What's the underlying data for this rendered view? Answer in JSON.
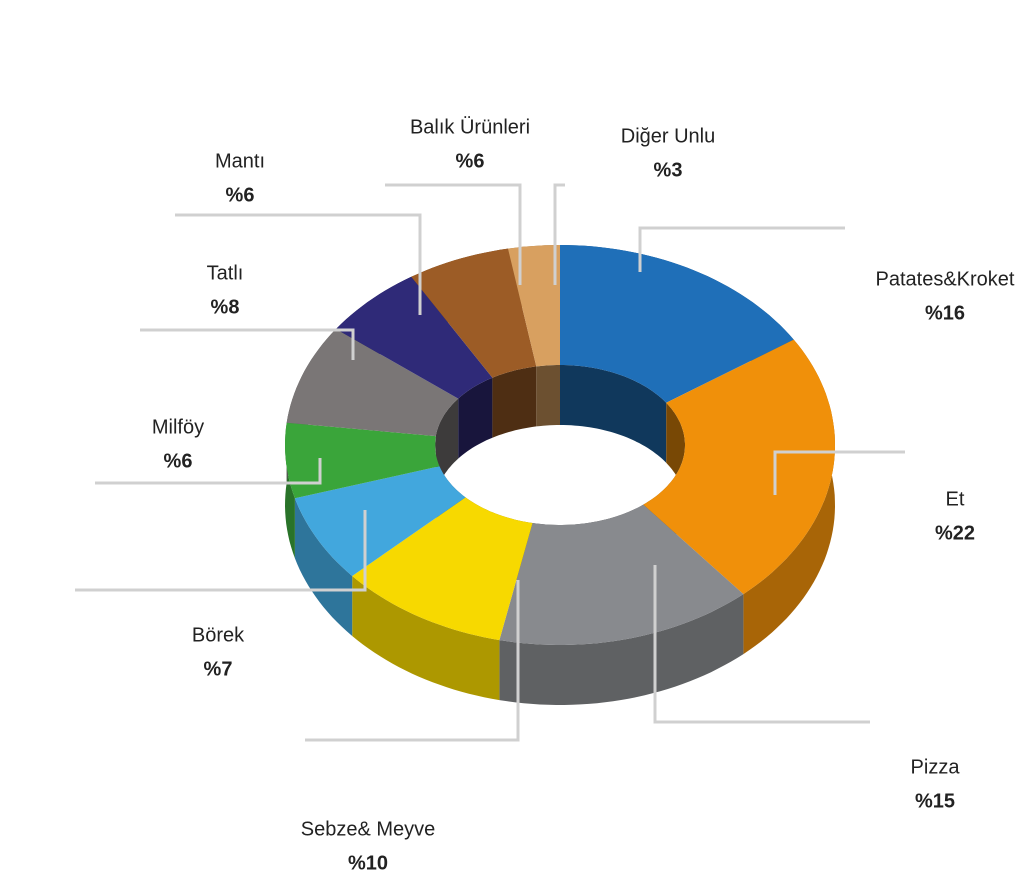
{
  "chart_data": {
    "type": "donut3d",
    "categories": [
      "Patates&Kroket",
      "Et",
      "Pizza",
      "Sebze& Meyve",
      "Börek",
      "Milföy",
      "Tatlı",
      "Mantı",
      "Balık Ürünleri",
      "Diğer Unlu"
    ],
    "values": [
      16,
      22,
      15,
      10,
      7,
      6,
      8,
      6,
      6,
      3
    ],
    "value_labels": [
      "%16",
      "%22",
      "%15",
      "%10",
      "%7",
      "%6",
      "%8",
      "%6",
      "%6",
      "%3"
    ],
    "colors": [
      "#1f6fb8",
      "#f0900a",
      "#888a8e",
      "#f7d900",
      "#42a7dd",
      "#3aa53a",
      "#7a7676",
      "#2f2a78",
      "#9c5c26",
      "#d8a060"
    ]
  }
}
